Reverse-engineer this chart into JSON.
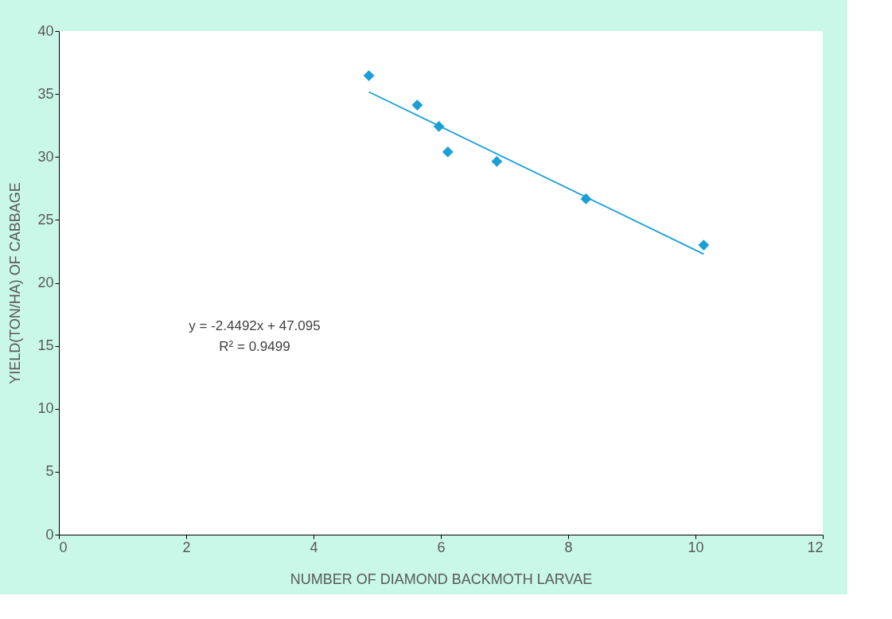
{
  "chart_data": {
    "type": "scatter",
    "xlabel": "NUMBER OF DIAMOND BACKMOTH LARVAE",
    "ylabel": "YIELD(TON/HA) OF CABBAGE",
    "xlim": [
      0,
      12
    ],
    "xticks": [
      0,
      2,
      4,
      6,
      8,
      10,
      12
    ],
    "ylim": [
      0,
      40
    ],
    "yticks": [
      0,
      5,
      10,
      15,
      20,
      25,
      30,
      35,
      40
    ],
    "grid": false,
    "marker": "diamond",
    "series": [
      {
        "color": "#1a9fd8",
        "x": [
          4.87,
          5.63,
          5.97,
          6.11,
          6.88,
          8.28,
          10.13
        ],
        "values": [
          36.46,
          34.12,
          32.42,
          30.4,
          29.64,
          26.67,
          23.0
        ]
      },
      {
        "type": "line",
        "color": "#1a9fd8",
        "x": [
          4.87,
          10.13
        ],
        "values": [
          35.17,
          22.28
        ],
        "marker": "none",
        "line_style": "solid"
      }
    ],
    "annotations": [
      "y = -2.4492x + 47.095",
      "R² = 0.9499"
    ]
  }
}
